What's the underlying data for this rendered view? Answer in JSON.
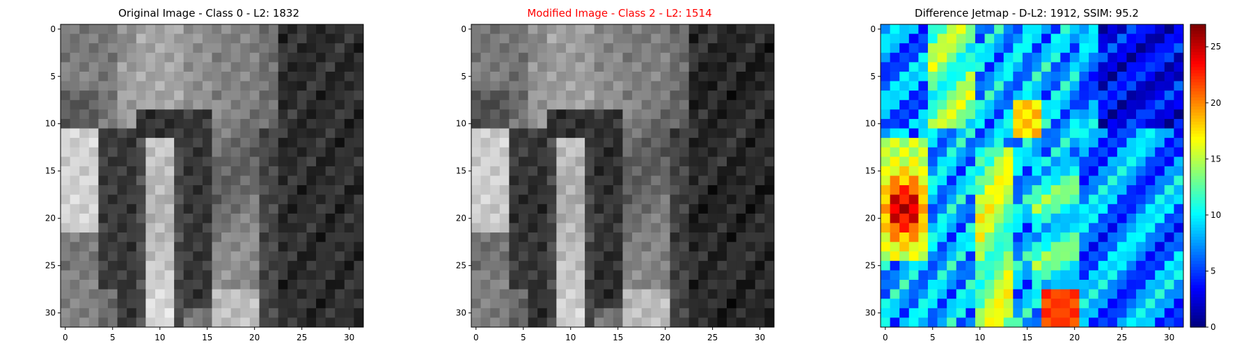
{
  "panels": [
    {
      "title": "Original Image - Class 0 - L2: 1832",
      "title_color": "#000000",
      "kind": "grayscale-image"
    },
    {
      "title": "Modified Image - Class 2 - L2: 1514",
      "title_color": "#ff0000",
      "kind": "grayscale-image"
    },
    {
      "title": "Difference Jetmap - D-L2: 1912, SSIM: 95.2",
      "title_color": "#000000",
      "kind": "jet-heatmap"
    }
  ],
  "chart_data": [
    {
      "type": "heatmap",
      "title": "Original Image - Class 0 - L2: 1832",
      "grid_size": [
        32,
        32
      ],
      "colormap": "gray",
      "xlim": [
        -0.5,
        31.5
      ],
      "ylim": [
        31.5,
        -0.5
      ],
      "x_ticks": [
        0,
        5,
        10,
        15,
        20,
        25,
        30
      ],
      "y_ticks": [
        0,
        5,
        10,
        15,
        20,
        25,
        30
      ],
      "legend": "none"
    },
    {
      "type": "heatmap",
      "title": "Modified Image - Class 2 - L2: 1514",
      "grid_size": [
        32,
        32
      ],
      "colormap": "gray",
      "xlim": [
        -0.5,
        31.5
      ],
      "ylim": [
        31.5,
        -0.5
      ],
      "x_ticks": [
        0,
        5,
        10,
        15,
        20,
        25,
        30
      ],
      "y_ticks": [
        0,
        5,
        10,
        15,
        20,
        25,
        30
      ],
      "legend": "none"
    },
    {
      "type": "heatmap",
      "title": "Difference Jetmap - D-L2: 1912, SSIM: 95.2",
      "grid_size": [
        32,
        32
      ],
      "colormap": "jet",
      "xlim": [
        -0.5,
        31.5
      ],
      "ylim": [
        31.5,
        -0.5
      ],
      "x_ticks": [
        0,
        5,
        10,
        15,
        20,
        25,
        30
      ],
      "y_ticks": [
        0,
        5,
        10,
        15,
        20,
        25,
        30
      ],
      "colorbar_range": [
        0,
        27
      ],
      "colorbar_ticks": [
        0,
        5,
        10,
        15,
        20,
        25
      ]
    }
  ]
}
